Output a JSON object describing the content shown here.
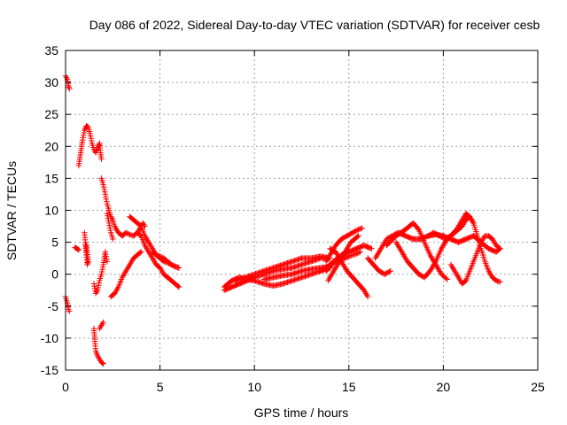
{
  "chart_data": {
    "type": "scatter",
    "title": "Day 086 of 2022, Sidereal Day-to-day VTEC variation (SDTVAR) for receiver cesb",
    "xlabel": "GPS time / hours",
    "ylabel": "SDTVAR / TECUs",
    "xlim": [
      0,
      25
    ],
    "ylim": [
      -15,
      35
    ],
    "x_ticks": [
      0,
      5,
      10,
      15,
      20,
      25
    ],
    "y_ticks": [
      -15,
      -10,
      -5,
      0,
      5,
      10,
      15,
      20,
      25,
      30,
      35
    ],
    "grid": true,
    "marker": "+",
    "color": "#ff0000",
    "series": [
      {
        "name": "trace-01",
        "points": [
          [
            0.0,
            31.0
          ],
          [
            0.1,
            30.5
          ],
          [
            0.15,
            29.5
          ],
          [
            0.2,
            29.0
          ]
        ]
      },
      {
        "name": "trace-02",
        "points": [
          [
            0.0,
            -3.5
          ],
          [
            0.1,
            -4.5
          ],
          [
            0.15,
            -5.5
          ],
          [
            0.2,
            -5.8
          ]
        ]
      },
      {
        "name": "trace-03",
        "points": [
          [
            0.5,
            4.2
          ],
          [
            0.6,
            4.0
          ],
          [
            0.7,
            3.8
          ]
        ]
      },
      {
        "name": "trace-04",
        "points": [
          [
            0.7,
            17.0
          ],
          [
            0.8,
            19.0
          ],
          [
            0.9,
            21.0
          ],
          [
            1.0,
            22.5
          ],
          [
            1.1,
            23.2
          ],
          [
            1.2,
            23.0
          ],
          [
            1.3,
            22.0
          ],
          [
            1.4,
            20.5
          ],
          [
            1.5,
            19.5
          ],
          [
            1.6,
            19.0
          ],
          [
            1.7,
            19.8
          ],
          [
            1.8,
            20.5
          ],
          [
            1.85,
            19.0
          ],
          [
            1.9,
            18.0
          ]
        ]
      },
      {
        "name": "trace-05",
        "points": [
          [
            1.0,
            6.5
          ],
          [
            1.05,
            5.0
          ],
          [
            1.1,
            3.0
          ],
          [
            1.15,
            1.5
          ],
          [
            1.2,
            2.0
          ],
          [
            1.1,
            4.5
          ]
        ]
      },
      {
        "name": "trace-06",
        "points": [
          [
            1.5,
            -1.5
          ],
          [
            1.6,
            -3.0
          ],
          [
            1.7,
            -2.5
          ],
          [
            1.8,
            -1.0
          ],
          [
            1.9,
            0.0
          ],
          [
            2.0,
            1.5
          ],
          [
            2.1,
            3.5
          ],
          [
            2.2,
            2.0
          ]
        ]
      },
      {
        "name": "trace-07",
        "points": [
          [
            1.5,
            -8.5
          ],
          [
            1.55,
            -10.5
          ],
          [
            1.6,
            -12.0
          ],
          [
            1.7,
            -12.8
          ],
          [
            1.8,
            -13.3
          ],
          [
            1.9,
            -13.8
          ],
          [
            2.0,
            -14.0
          ]
        ]
      },
      {
        "name": "trace-08",
        "points": [
          [
            1.8,
            -8.5
          ],
          [
            1.9,
            -8.0
          ],
          [
            2.0,
            -7.5
          ]
        ]
      },
      {
        "name": "trace-09",
        "points": [
          [
            1.9,
            15.0
          ],
          [
            2.0,
            14.0
          ],
          [
            2.1,
            12.5
          ],
          [
            2.2,
            11.0
          ],
          [
            2.3,
            10.0
          ],
          [
            2.4,
            9.0
          ],
          [
            2.5,
            8.5
          ],
          [
            2.6,
            7.5
          ],
          [
            2.7,
            7.0
          ],
          [
            2.8,
            6.5
          ],
          [
            3.0,
            6.0
          ],
          [
            3.2,
            6.5
          ],
          [
            3.4,
            6.2
          ],
          [
            3.6,
            6.0
          ],
          [
            3.8,
            6.5
          ],
          [
            4.0,
            7.5
          ],
          [
            4.1,
            8.0
          ],
          [
            4.2,
            7.5
          ]
        ]
      },
      {
        "name": "trace-10",
        "points": [
          [
            2.2,
            9.5
          ],
          [
            2.3,
            8.0
          ],
          [
            2.4,
            6.5
          ],
          [
            2.5,
            5.5
          ]
        ]
      },
      {
        "name": "trace-11",
        "points": [
          [
            2.4,
            -3.5
          ],
          [
            2.6,
            -3.0
          ],
          [
            2.8,
            -2.0
          ],
          [
            3.0,
            -0.5
          ],
          [
            3.2,
            0.5
          ],
          [
            3.4,
            1.5
          ],
          [
            3.6,
            2.5
          ],
          [
            3.8,
            3.0
          ],
          [
            4.0,
            3.5
          ]
        ]
      },
      {
        "name": "trace-12",
        "points": [
          [
            3.4,
            9.0
          ],
          [
            3.6,
            8.5
          ],
          [
            3.8,
            8.0
          ],
          [
            4.0,
            7.5
          ],
          [
            4.2,
            6.0
          ],
          [
            4.4,
            5.0
          ],
          [
            4.6,
            4.0
          ],
          [
            4.8,
            3.0
          ],
          [
            5.0,
            2.5
          ],
          [
            5.2,
            2.0
          ],
          [
            5.4,
            1.8
          ],
          [
            5.6,
            1.5
          ],
          [
            5.8,
            1.2
          ],
          [
            6.0,
            1.0
          ]
        ]
      },
      {
        "name": "trace-13",
        "points": [
          [
            3.8,
            6.5
          ],
          [
            4.0,
            6.0
          ],
          [
            4.2,
            4.5
          ],
          [
            4.4,
            3.5
          ],
          [
            4.6,
            2.5
          ],
          [
            4.8,
            1.5
          ],
          [
            5.0,
            1.0
          ],
          [
            5.2,
            0.0
          ],
          [
            5.4,
            -0.5
          ],
          [
            5.6,
            -1.0
          ],
          [
            5.8,
            -1.5
          ],
          [
            6.0,
            -2.0
          ]
        ]
      },
      {
        "name": "trace-14",
        "points": [
          [
            4.6,
            3.5
          ],
          [
            4.8,
            3.0
          ],
          [
            5.0,
            2.8
          ],
          [
            5.2,
            2.5
          ],
          [
            5.4,
            2.0
          ],
          [
            5.6,
            1.5
          ],
          [
            5.8,
            1.2
          ],
          [
            6.0,
            1.0
          ]
        ]
      },
      {
        "name": "trace-15",
        "points": [
          [
            8.4,
            -2.5
          ],
          [
            8.8,
            -2.0
          ],
          [
            9.2,
            -1.5
          ],
          [
            9.6,
            -1.0
          ],
          [
            10.0,
            -0.5
          ],
          [
            10.5,
            0.0
          ],
          [
            11.0,
            0.5
          ],
          [
            11.5,
            0.8
          ],
          [
            12.0,
            1.0
          ],
          [
            12.5,
            1.5
          ],
          [
            13.0,
            2.0
          ],
          [
            13.5,
            2.5
          ],
          [
            14.0,
            2.5
          ]
        ]
      },
      {
        "name": "trace-16",
        "points": [
          [
            8.4,
            -2.0
          ],
          [
            8.8,
            -1.0
          ],
          [
            9.2,
            -0.5
          ],
          [
            9.6,
            -0.8
          ],
          [
            10.0,
            -1.0
          ],
          [
            10.5,
            -1.5
          ],
          [
            11.0,
            -1.8
          ],
          [
            11.5,
            -1.5
          ],
          [
            12.0,
            -1.0
          ],
          [
            12.5,
            -0.5
          ],
          [
            13.0,
            0.0
          ],
          [
            13.5,
            0.5
          ],
          [
            14.0,
            1.0
          ]
        ]
      },
      {
        "name": "trace-17",
        "points": [
          [
            9.0,
            -1.0
          ],
          [
            9.5,
            -0.5
          ],
          [
            10.0,
            0.0
          ],
          [
            10.5,
            0.5
          ],
          [
            11.0,
            1.0
          ],
          [
            11.5,
            1.5
          ],
          [
            12.0,
            2.0
          ],
          [
            12.5,
            2.5
          ],
          [
            13.0,
            2.5
          ],
          [
            13.5,
            2.8
          ],
          [
            14.0,
            2.5
          ]
        ]
      },
      {
        "name": "trace-18",
        "points": [
          [
            10.5,
            -0.8
          ],
          [
            11.0,
            -0.5
          ],
          [
            11.5,
            -0.2
          ],
          [
            12.0,
            0.0
          ],
          [
            12.5,
            0.5
          ],
          [
            13.0,
            0.8
          ],
          [
            13.5,
            1.0
          ],
          [
            14.0,
            1.2
          ]
        ]
      },
      {
        "name": "trace-19",
        "points": [
          [
            13.8,
            2.0
          ],
          [
            14.0,
            3.0
          ],
          [
            14.3,
            4.5
          ],
          [
            14.6,
            5.5
          ],
          [
            14.9,
            6.0
          ],
          [
            15.2,
            6.5
          ],
          [
            15.5,
            7.0
          ],
          [
            15.7,
            7.2
          ]
        ]
      },
      {
        "name": "trace-20",
        "points": [
          [
            13.5,
            0.5
          ],
          [
            13.8,
            1.0
          ],
          [
            14.2,
            2.0
          ],
          [
            14.6,
            3.0
          ],
          [
            15.0,
            3.5
          ],
          [
            15.4,
            4.0
          ],
          [
            15.8,
            4.5
          ],
          [
            16.2,
            4.0
          ]
        ]
      },
      {
        "name": "trace-21",
        "points": [
          [
            13.8,
            0.5
          ],
          [
            14.0,
            1.2
          ],
          [
            14.2,
            1.8
          ],
          [
            14.4,
            2.0
          ],
          [
            14.6,
            2.2
          ],
          [
            14.8,
            2.5
          ],
          [
            15.0,
            2.8
          ],
          [
            15.2,
            3.0
          ],
          [
            15.4,
            3.2
          ],
          [
            15.6,
            3.5
          ]
        ]
      },
      {
        "name": "trace-22",
        "points": [
          [
            13.9,
            -1.0
          ],
          [
            14.1,
            0.0
          ],
          [
            14.3,
            1.0
          ],
          [
            14.5,
            2.0
          ],
          [
            14.7,
            3.0
          ],
          [
            14.9,
            4.0
          ],
          [
            15.1,
            5.0
          ],
          [
            15.3,
            5.5
          ],
          [
            15.5,
            6.0
          ]
        ]
      },
      {
        "name": "trace-23",
        "points": [
          [
            14.0,
            4.0
          ],
          [
            14.3,
            3.5
          ],
          [
            14.6,
            2.0
          ],
          [
            14.9,
            0.5
          ],
          [
            15.2,
            -0.5
          ],
          [
            15.5,
            -1.5
          ],
          [
            15.8,
            -2.5
          ],
          [
            16.0,
            -3.5
          ]
        ]
      },
      {
        "name": "trace-24",
        "points": [
          [
            16.0,
            2.5
          ],
          [
            16.3,
            1.5
          ],
          [
            16.6,
            0.5
          ],
          [
            16.9,
            0.0
          ],
          [
            17.2,
            0.5
          ]
        ]
      },
      {
        "name": "trace-25",
        "points": [
          [
            16.4,
            2.5
          ],
          [
            16.6,
            3.5
          ],
          [
            16.8,
            4.5
          ],
          [
            17.0,
            5.5
          ],
          [
            17.3,
            6.0
          ],
          [
            17.6,
            6.5
          ],
          [
            18.0,
            6.0
          ],
          [
            18.4,
            5.5
          ],
          [
            18.8,
            5.5
          ],
          [
            19.2,
            6.0
          ],
          [
            19.6,
            6.2
          ],
          [
            20.0,
            6.0
          ],
          [
            20.4,
            5.5
          ],
          [
            20.8,
            5.0
          ],
          [
            21.2,
            5.5
          ],
          [
            21.6,
            6.0
          ],
          [
            22.0,
            5.0
          ],
          [
            22.4,
            4.0
          ],
          [
            22.8,
            3.5
          ],
          [
            23.0,
            4.0
          ]
        ]
      },
      {
        "name": "trace-26",
        "points": [
          [
            17.0,
            4.5
          ],
          [
            17.5,
            6.0
          ],
          [
            18.0,
            7.0
          ],
          [
            18.4,
            8.0
          ],
          [
            18.7,
            7.0
          ],
          [
            19.0,
            5.0
          ],
          [
            19.3,
            3.0
          ],
          [
            19.6,
            1.5
          ],
          [
            19.9,
            0.0
          ],
          [
            20.2,
            -0.8
          ]
        ]
      },
      {
        "name": "trace-27",
        "points": [
          [
            17.5,
            5.0
          ],
          [
            17.8,
            3.5
          ],
          [
            18.1,
            2.0
          ],
          [
            18.4,
            1.0
          ],
          [
            18.7,
            0.0
          ],
          [
            19.0,
            -0.5
          ],
          [
            19.3,
            0.5
          ],
          [
            19.6,
            2.0
          ],
          [
            19.9,
            4.0
          ],
          [
            20.2,
            5.5
          ],
          [
            20.6,
            6.5
          ],
          [
            21.0,
            7.5
          ],
          [
            21.2,
            8.5
          ],
          [
            21.4,
            9.0
          ],
          [
            21.6,
            8.0
          ]
        ]
      },
      {
        "name": "trace-28",
        "points": [
          [
            19.2,
            6.0
          ],
          [
            19.5,
            6.5
          ],
          [
            19.8,
            6.0
          ],
          [
            20.1,
            5.5
          ],
          [
            20.4,
            6.0
          ],
          [
            20.7,
            7.0
          ],
          [
            21.0,
            8.5
          ],
          [
            21.2,
            9.5
          ],
          [
            21.4,
            9.0
          ],
          [
            21.6,
            8.0
          ],
          [
            21.8,
            6.0
          ],
          [
            22.0,
            4.0
          ],
          [
            22.2,
            2.0
          ],
          [
            22.4,
            0.5
          ],
          [
            22.6,
            -0.5
          ],
          [
            22.8,
            -1.0
          ],
          [
            23.0,
            -1.2
          ]
        ]
      },
      {
        "name": "trace-29",
        "points": [
          [
            20.4,
            1.5
          ],
          [
            20.6,
            0.5
          ],
          [
            20.8,
            -0.5
          ],
          [
            21.0,
            -1.5
          ],
          [
            21.2,
            -1.0
          ],
          [
            21.4,
            0.5
          ],
          [
            21.6,
            2.0
          ],
          [
            21.8,
            3.5
          ],
          [
            22.0,
            5.0
          ],
          [
            22.2,
            6.0
          ],
          [
            22.4,
            6.0
          ],
          [
            22.6,
            5.5
          ],
          [
            22.8,
            4.5
          ],
          [
            23.0,
            4.0
          ]
        ]
      }
    ]
  }
}
